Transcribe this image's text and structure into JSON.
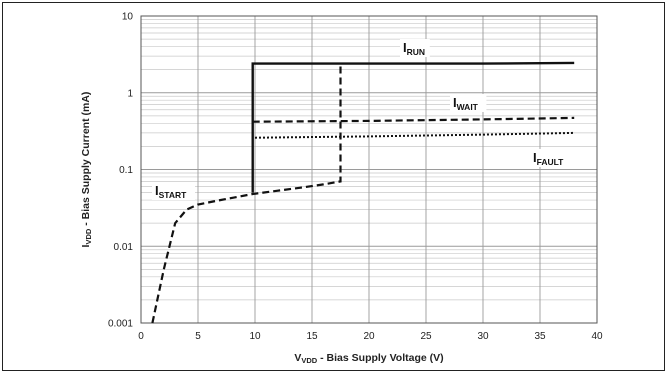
{
  "chart_data": {
    "type": "line",
    "xlabel": "V_VDD - Bias Supply Voltage (V)",
    "ylabel": "I_VDD - Bias Supply Current (mA)",
    "xlabel_main": "V",
    "xlabel_sub": "VDD",
    "xlabel_rest": " - Bias Supply Voltage (V)",
    "ylabel_main": "I",
    "ylabel_sub": "VDD",
    "ylabel_rest": " - Bias Supply Current (mA)",
    "xlim": [
      0,
      40
    ],
    "ylim": [
      0.001,
      10
    ],
    "y_scale": "log",
    "grid": true,
    "x_ticks": [
      0,
      5,
      10,
      15,
      20,
      25,
      30,
      35,
      40
    ],
    "x_tick_labels": [
      "0",
      "5",
      "10",
      "15",
      "20",
      "25",
      "30",
      "35",
      "40"
    ],
    "y_ticks": [
      0.001,
      0.01,
      0.1,
      1,
      10
    ],
    "y_tick_labels": [
      "0.001",
      "0.01",
      "0.1",
      "1",
      "10"
    ],
    "series": [
      {
        "name": "I_START",
        "label_main": "I",
        "label_sub": "START",
        "style": "dashed",
        "x": [
          1,
          2,
          3,
          4,
          5,
          7,
          9.8,
          12,
          14,
          16,
          17.5,
          17.5
        ],
        "y": [
          0.001,
          0.005,
          0.02,
          0.03,
          0.035,
          0.04,
          0.048,
          0.053,
          0.058,
          0.064,
          0.07,
          2.4
        ]
      },
      {
        "name": "I_RUN",
        "label_main": "I",
        "label_sub": "RUN",
        "style": "solid",
        "x": [
          9.8,
          9.8,
          20,
          30,
          38
        ],
        "y": [
          0.05,
          2.4,
          2.4,
          2.4,
          2.45
        ]
      },
      {
        "name": "I_WAIT",
        "label_main": "I",
        "label_sub": "WAIT",
        "style": "dashed",
        "x": [
          9.8,
          20,
          30,
          38
        ],
        "y": [
          0.42,
          0.43,
          0.45,
          0.47
        ]
      },
      {
        "name": "I_FAULT",
        "label_main": "I",
        "label_sub": "FAULT",
        "style": "dotted",
        "x": [
          10,
          20,
          30,
          38
        ],
        "y": [
          0.26,
          0.27,
          0.285,
          0.3
        ]
      }
    ]
  }
}
